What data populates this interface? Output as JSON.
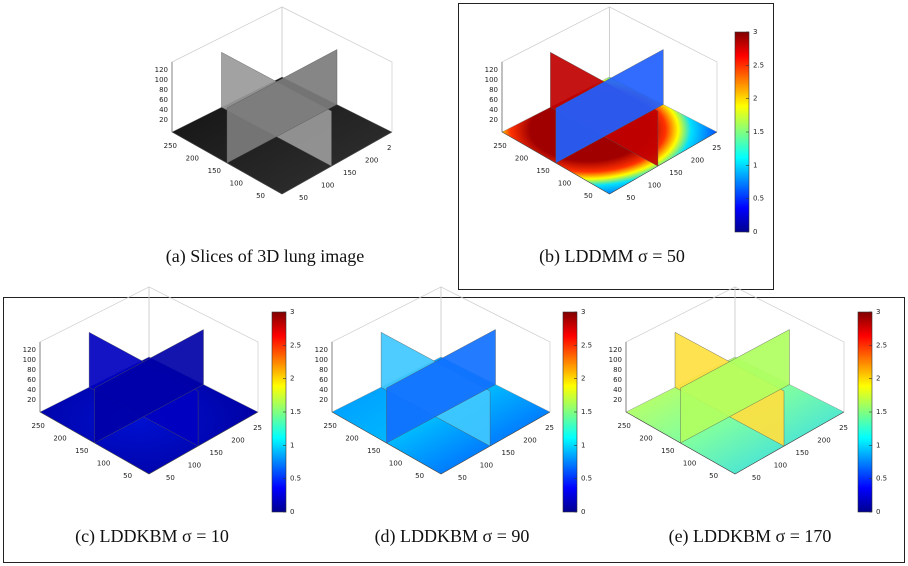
{
  "panels": [
    {
      "caption": "(a) Slices of 3D lung image",
      "z_ticks": [
        "120",
        "100",
        "80",
        "60",
        "40",
        "20"
      ],
      "y_ticks": [
        "250",
        "200",
        "150",
        "100",
        "50"
      ],
      "x_ticks": [
        "50",
        "100",
        "150",
        "200",
        "2"
      ]
    },
    {
      "caption": "(b) LDDMM σ = 50",
      "z_ticks": [
        "120",
        "100",
        "80",
        "60",
        "40",
        "20"
      ],
      "y_ticks": [
        "250",
        "200",
        "150",
        "100",
        "50"
      ],
      "x_ticks": [
        "50",
        "100",
        "150",
        "200",
        "25"
      ],
      "colorbar_ticks": [
        "3",
        "2.5",
        "2",
        "1.5",
        "1",
        "0.5",
        "0"
      ]
    },
    {
      "caption": "(c) LDDKBM σ = 10",
      "z_ticks": [
        "120",
        "100",
        "80",
        "60",
        "40",
        "20"
      ],
      "y_ticks": [
        "250",
        "200",
        "150",
        "100",
        "50"
      ],
      "x_ticks": [
        "50",
        "100",
        "150",
        "200",
        "25"
      ],
      "colorbar_ticks": [
        "3",
        "2.5",
        "2",
        "1.5",
        "1",
        "0.5",
        "0"
      ]
    },
    {
      "caption": "(d) LDDKBM σ = 90",
      "z_ticks": [
        "120",
        "100",
        "80",
        "60",
        "40",
        "20"
      ],
      "y_ticks": [
        "250",
        "200",
        "150",
        "100",
        "50"
      ],
      "x_ticks": [
        "50",
        "100",
        "150",
        "200",
        "25"
      ],
      "colorbar_ticks": [
        "3",
        "2.5",
        "2",
        "1.5",
        "1",
        "0.5",
        "0"
      ]
    },
    {
      "caption": "(e) LDDKBM σ = 170",
      "z_ticks": [
        "120",
        "100",
        "80",
        "60",
        "40",
        "20"
      ],
      "y_ticks": [
        "250",
        "200",
        "150",
        "100",
        "50"
      ],
      "x_ticks": [
        "50",
        "100",
        "150",
        "200",
        "25"
      ],
      "colorbar_ticks": [
        "3",
        "2.5",
        "2",
        "1.5",
        "1",
        "0.5",
        "0"
      ]
    }
  ]
}
